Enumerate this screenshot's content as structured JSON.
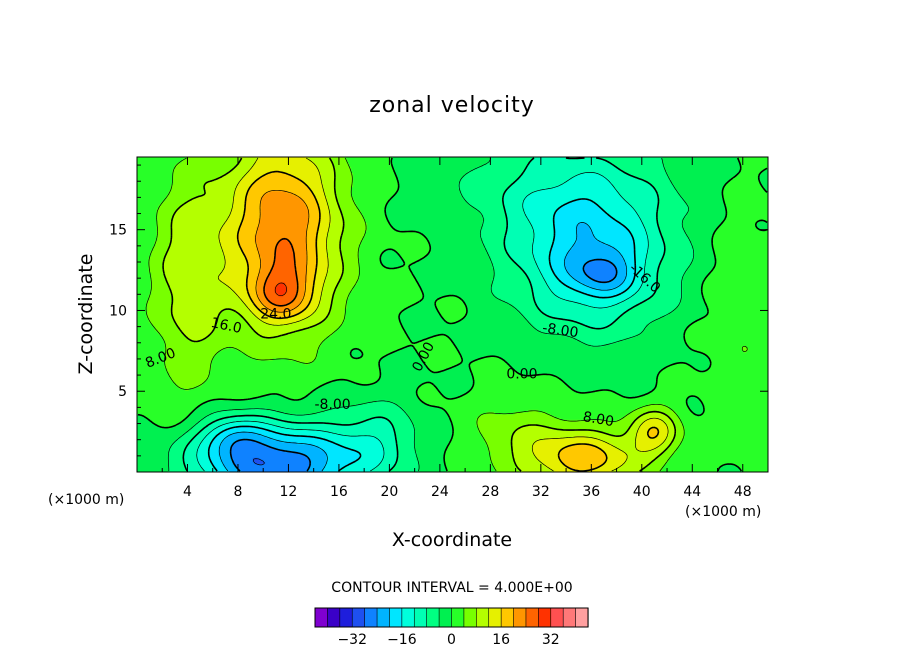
{
  "chart_data": {
    "type": "contour",
    "title": "zonal velocity",
    "xlabel": "X-coordinate",
    "ylabel": "Z-coordinate",
    "x_unit": "(×1000 m)",
    "z_unit": "(×1000 m)",
    "xlim": [
      0,
      50
    ],
    "ylim": [
      0,
      19.5
    ],
    "x_ticks": [
      "4",
      "8",
      "12",
      "16",
      "20",
      "24",
      "28",
      "32",
      "36",
      "40",
      "44",
      "48"
    ],
    "y_ticks": [
      "5",
      "10",
      "15"
    ],
    "contour_interval_text": "CONTOUR INTERVAL = 4.000E+00",
    "contour_interval": 4,
    "contour_labels": [
      "24.0",
      "16.0",
      "8.00",
      "0.00",
      "0.00",
      "-8.00",
      "-8.00",
      "-16.0",
      "8.00"
    ],
    "colorbar": {
      "ticks": [
        "-32",
        "-16",
        "0",
        "16",
        "32"
      ],
      "levels": [
        -36,
        -32,
        -28,
        -24,
        -20,
        -16,
        -12,
        -8,
        -4,
        0,
        4,
        8,
        12,
        16,
        20,
        24,
        28,
        32,
        36
      ],
      "colors": [
        "#7f00d0",
        "#3a00c8",
        "#1e1edc",
        "#1e50f0",
        "#0f82ff",
        "#00b4ff",
        "#00e6ff",
        "#00ffdc",
        "#00ffb4",
        "#00ff82",
        "#00f050",
        "#28ff28",
        "#78ff00",
        "#b4ff00",
        "#e6f000",
        "#ffc800",
        "#ff9600",
        "#ff6400",
        "#ff3200",
        "#ff5050",
        "#ff7878",
        "#ffa0a0"
      ]
    },
    "features": [
      {
        "type": "max",
        "x": 11.5,
        "z": 11.0,
        "value": 34
      },
      {
        "type": "min",
        "x": 36.5,
        "z": 12.3,
        "value": -22
      },
      {
        "type": "min",
        "x": 12.5,
        "z": 0.6,
        "value": -34
      },
      {
        "type": "min",
        "x": 7.5,
        "z": 2.2,
        "value": -26
      },
      {
        "type": "max",
        "x": 35.5,
        "z": 1.0,
        "value": 22
      },
      {
        "type": "max",
        "x": 41.0,
        "z": 2.5,
        "value": 20
      }
    ]
  }
}
